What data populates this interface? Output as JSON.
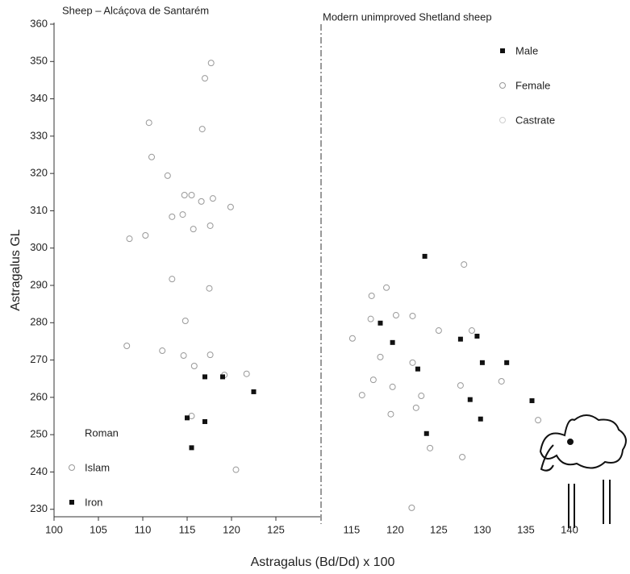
{
  "chart_data": [
    {
      "type": "scatter",
      "title": "Sheep – Alcáçova de Santarém",
      "ylabel": "Astragalus GL",
      "xlabel": "Astragalus (Bd/Dd) x 100",
      "xlim": [
        100,
        130
      ],
      "ylim": [
        228,
        360
      ],
      "xticks": [
        100,
        105,
        110,
        115,
        120,
        125
      ],
      "yticks": [
        230,
        240,
        250,
        260,
        270,
        280,
        290,
        300,
        310,
        320,
        330,
        340,
        350,
        360
      ],
      "legend": "bottom-left",
      "series": [
        {
          "name": "Roman",
          "color": "#cccccc",
          "marker": "none",
          "x": [],
          "values": []
        },
        {
          "name": "Islam",
          "color": "#999999",
          "marker": "circle",
          "x": [
            117.7,
            117.0,
            110.7,
            116.7,
            111.0,
            112.8,
            114.7,
            115.5,
            117.9,
            116.6,
            119.9,
            114.5,
            113.3,
            117.6,
            115.7,
            110.3,
            108.5,
            113.3,
            117.5,
            114.8,
            108.2,
            112.2,
            117.6,
            114.6,
            115.8,
            119.2,
            121.7,
            115.5,
            120.5
          ],
          "values": [
            349.6,
            345.5,
            333.6,
            331.9,
            324.4,
            319.4,
            314.2,
            314.2,
            313.3,
            312.5,
            311.0,
            309.0,
            308.4,
            306.0,
            305.1,
            303.4,
            302.5,
            291.7,
            289.2,
            280.5,
            273.8,
            272.5,
            271.4,
            271.2,
            268.4,
            266.0,
            266.3,
            255.0,
            240.6
          ]
        },
        {
          "name": "Iron",
          "color": "#111111",
          "marker": "square",
          "x": [
            117,
            119,
            122.5,
            115,
            117,
            115.5
          ],
          "values": [
            265.5,
            265.5,
            261.5,
            254.5,
            253.5,
            246.5
          ]
        }
      ]
    },
    {
      "type": "scatter",
      "title": "Modern unimproved Shetland sheep",
      "xlim": [
        111.5,
        145
      ],
      "ylim": [
        228,
        360
      ],
      "xticks": [
        115,
        120,
        125,
        130,
        135,
        140
      ],
      "legend": "top-right",
      "series": [
        {
          "name": "Male",
          "color": "#111111",
          "marker": "square",
          "x": [
            123.4,
            118.3,
            119.7,
            129.4,
            127.5,
            122.6,
            130.0,
            132.8,
            128.6,
            135.7,
            129.8,
            123.6
          ],
          "values": [
            297.8,
            279.9,
            274.7,
            276.4,
            275.6,
            267.6,
            269.3,
            269.3,
            259.4,
            259.1,
            254.2,
            250.3
          ]
        },
        {
          "name": "Female",
          "color": "#999999",
          "marker": "circle",
          "x": [
            117.3,
            119.0,
            127.9,
            117.2,
            120.1,
            122.0,
            115.1,
            118.3,
            122.0,
            117.5,
            119.7,
            116.2,
            122.4,
            123.0,
            127.5,
            128.8,
            119.5,
            124.0,
            127.7,
            121.9,
            125.0,
            132.2,
            136.4
          ],
          "values": [
            287.2,
            289.4,
            295.6,
            281.0,
            282.0,
            281.8,
            275.8,
            270.8,
            269.3,
            264.7,
            262.8,
            260.6,
            257.2,
            260.4,
            263.2,
            277.9,
            255.5,
            246.4,
            244.0,
            230.4,
            277.9,
            264.3,
            253.9
          ]
        },
        {
          "name": "Castrate",
          "color": "#cfcfcf",
          "marker": "circle",
          "x": [],
          "values": []
        }
      ]
    }
  ]
}
